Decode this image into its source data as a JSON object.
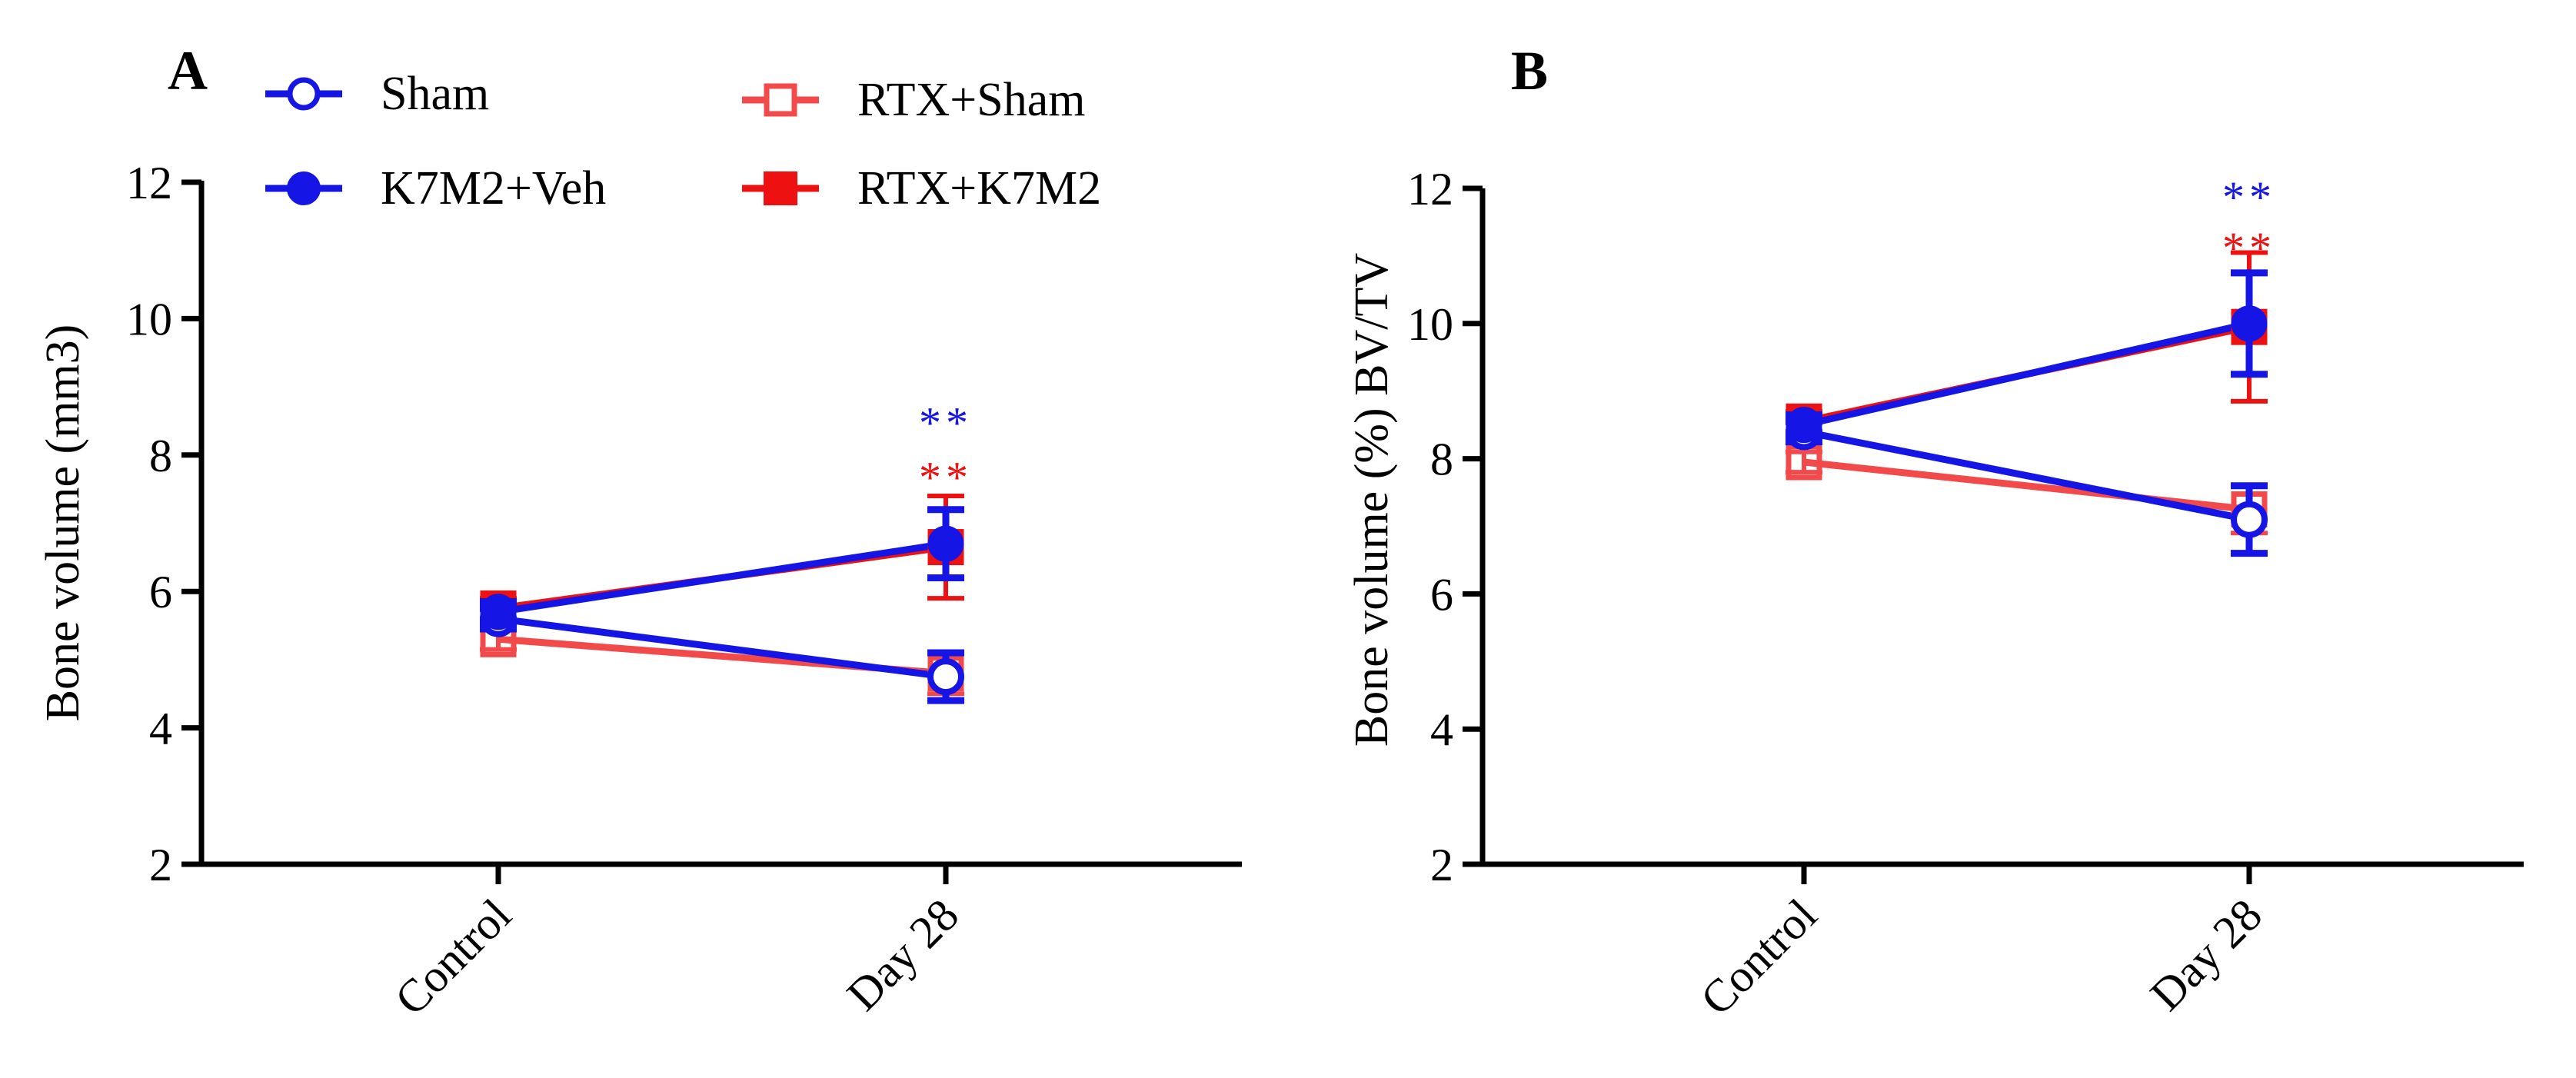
{
  "colors": {
    "blue": "#1515e6",
    "red": "#ee1111",
    "light_red": "#f24a4a",
    "axis": "#000000"
  },
  "legend": [
    {
      "label": "Sham",
      "marker": "open-circle",
      "color": "blue"
    },
    {
      "label": "K7M2+Veh",
      "marker": "filled-circle",
      "color": "blue"
    },
    {
      "label": "RTX+Sham",
      "marker": "open-square",
      "color": "light_red"
    },
    {
      "label": "RTX+K7M2",
      "marker": "filled-square",
      "color": "red"
    }
  ],
  "chart_data": [
    {
      "panel": "A",
      "type": "line",
      "categories": [
        "Control",
        "Day 28"
      ],
      "ylabel": "Bone volume (mm3)",
      "ylim": [
        2,
        12
      ],
      "yticks": [
        2,
        4,
        6,
        8,
        10,
        12
      ],
      "series": [
        {
          "name": "Sham",
          "values": [
            5.6,
            4.75
          ],
          "err": [
            0.15,
            0.35
          ]
        },
        {
          "name": "K7M2+Veh",
          "values": [
            5.7,
            6.7
          ],
          "err": [
            0.15,
            0.5
          ]
        },
        {
          "name": "RTX+Sham",
          "values": [
            5.3,
            4.8
          ],
          "err": [
            0.15,
            0.3
          ]
        },
        {
          "name": "RTX+K7M2",
          "values": [
            5.75,
            6.65
          ],
          "err": [
            0.15,
            0.75
          ]
        }
      ],
      "annotations": [
        {
          "category": "Day 28",
          "text": "**",
          "color": "blue",
          "y": 8.7
        },
        {
          "category": "Day 28",
          "text": "**",
          "color": "red",
          "y": 7.9
        }
      ]
    },
    {
      "panel": "B",
      "type": "line",
      "categories": [
        "Control",
        "Day 28"
      ],
      "ylabel": "Bone volume (%) BV/TV",
      "ylim": [
        2,
        12
      ],
      "yticks": [
        2,
        4,
        6,
        8,
        10,
        12
      ],
      "series": [
        {
          "name": "Sham",
          "values": [
            8.4,
            7.1
          ],
          "err": [
            0.15,
            0.5
          ]
        },
        {
          "name": "K7M2+Veh",
          "values": [
            8.5,
            10.0
          ],
          "err": [
            0.15,
            0.75
          ]
        },
        {
          "name": "RTX+Sham",
          "values": [
            7.95,
            7.25
          ],
          "err": [
            0.15,
            0.35
          ]
        },
        {
          "name": "RTX+K7M2",
          "values": [
            8.55,
            9.95
          ],
          "err": [
            0.15,
            1.1
          ]
        }
      ],
      "annotations": [
        {
          "category": "Day 28",
          "text": "**",
          "color": "blue",
          "y": 12.1
        },
        {
          "category": "Day 28",
          "text": "**",
          "color": "red",
          "y": 11.35
        }
      ]
    }
  ]
}
